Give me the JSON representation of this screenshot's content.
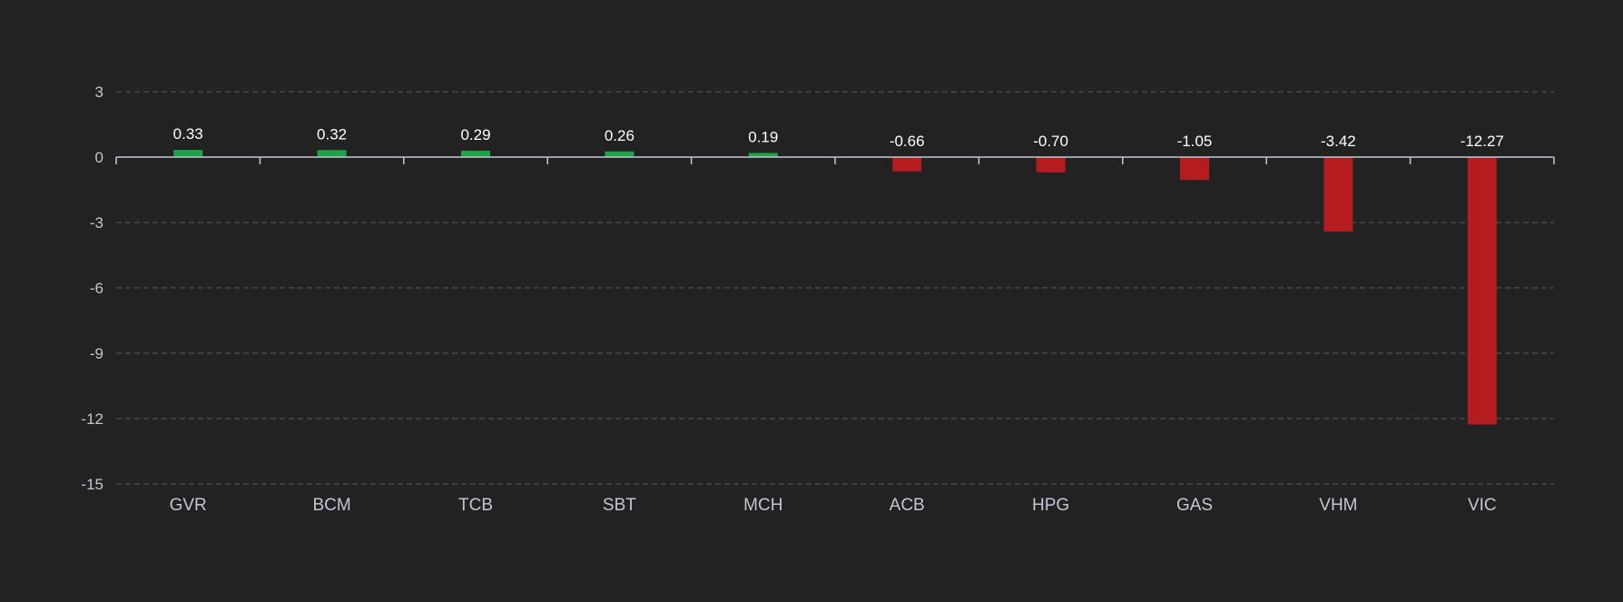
{
  "chart_data": {
    "type": "bar",
    "title": "",
    "xlabel": "",
    "ylabel": "",
    "categories": [
      "GVR",
      "BCM",
      "TCB",
      "SBT",
      "MCH",
      "ACB",
      "HPG",
      "GAS",
      "VHM",
      "VIC"
    ],
    "values": [
      0.33,
      0.32,
      0.29,
      0.26,
      0.19,
      -0.66,
      -0.7,
      -1.05,
      -3.42,
      -12.27
    ],
    "value_labels": [
      "0.33",
      "0.32",
      "0.29",
      "0.26",
      "0.19",
      "-0.66",
      "-0.70",
      "-1.05",
      "-3.42",
      "-12.27"
    ],
    "ylim": [
      -15,
      3
    ],
    "yticks": [
      3,
      0,
      -3,
      -6,
      -9,
      -12,
      -15
    ],
    "ytick_labels": [
      "3",
      "0",
      "-3",
      "-6",
      "-9",
      "-12",
      "-15"
    ],
    "grid": true,
    "legend": "none"
  },
  "colors": {
    "background": "#222222",
    "positive": "#1fa34a",
    "negative": "#b51c1f",
    "gridline": "#595959",
    "zero_axis": "#c4c8d6",
    "tick_text": "#c2c6d6",
    "label_text": "#ffffff"
  }
}
